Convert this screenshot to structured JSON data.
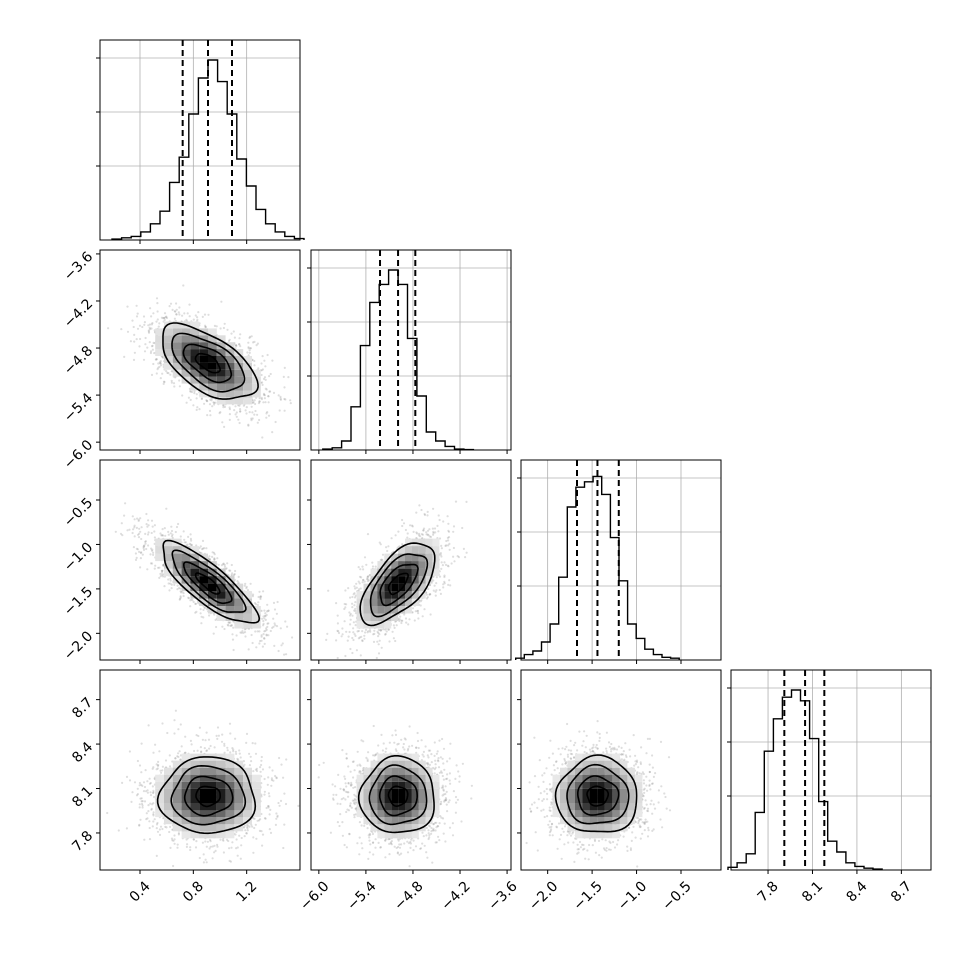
{
  "chart_data": {
    "type": "corner",
    "grid": true,
    "colors": {
      "line": "#000000",
      "grid": "#b0b0b0",
      "points": "#8a8a8a",
      "hist2d_low": "#ffffff",
      "hist2d_high": "#000000"
    },
    "params": [
      {
        "range": [
          0.1,
          1.6
        ],
        "ticks": [
          0.4,
          0.8,
          1.2
        ],
        "tick_labels": [
          "0.4",
          "0.8",
          "1.2"
        ],
        "center": 0.91,
        "sigma": 0.18,
        "quantiles": [
          0.72,
          0.91,
          1.09
        ],
        "hist": [
          0.005,
          0.012,
          0.02,
          0.045,
          0.09,
          0.16,
          0.32,
          0.46,
          0.7,
          0.9,
          1.0,
          0.88,
          0.7,
          0.45,
          0.3,
          0.17,
          0.09,
          0.045,
          0.02,
          0.008
        ]
      },
      {
        "range": [
          -6.1,
          -3.55
        ],
        "ticks": [
          -6.0,
          -5.4,
          -4.8,
          -4.2,
          -3.6
        ],
        "tick_labels": [
          "−6.0",
          "−5.4",
          "−4.8",
          "−4.2",
          "−3.6"
        ],
        "center": -4.99,
        "sigma": 0.24,
        "quantiles": [
          -5.22,
          -4.99,
          -4.77
        ],
        "hist": [
          0.005,
          0.012,
          0.05,
          0.24,
          0.58,
          0.82,
          0.92,
          1.0,
          0.92,
          0.62,
          0.3,
          0.1,
          0.05,
          0.02,
          0.005,
          0.002
        ]
      },
      {
        "range": [
          -2.3,
          -0.05
        ],
        "ticks": [
          -2.0,
          -1.5,
          -1.0,
          -0.5
        ],
        "tick_labels": [
          "−2.0",
          "−1.5",
          "−1.0",
          "−0.5"
        ],
        "center": -1.44,
        "sigma": 0.23,
        "quantiles": [
          -1.67,
          -1.44,
          -1.2
        ],
        "hist": [
          0.01,
          0.03,
          0.05,
          0.1,
          0.2,
          0.46,
          0.85,
          0.96,
          0.99,
          1.02,
          0.92,
          0.68,
          0.44,
          0.2,
          0.12,
          0.06,
          0.03,
          0.015,
          0.01
        ]
      },
      {
        "range": [
          7.55,
          8.9
        ],
        "ticks": [
          7.8,
          8.1,
          8.4,
          8.7
        ],
        "tick_labels": [
          "7.8",
          "8.1",
          "8.4",
          "8.7"
        ],
        "center": 8.05,
        "sigma": 0.13,
        "quantiles": [
          7.91,
          8.05,
          8.18
        ],
        "hist": [
          0.015,
          0.04,
          0.09,
          0.32,
          0.66,
          0.84,
          0.96,
          1.0,
          0.94,
          0.73,
          0.38,
          0.16,
          0.1,
          0.04,
          0.02,
          0.01,
          0.005
        ]
      }
    ],
    "correlations": {
      "1-0": -0.58,
      "2-0": -0.82,
      "2-1": 0.62,
      "3-0": 0.0,
      "3-1": 0.0,
      "3-2": 0.0
    },
    "contour_levels": [
      0.12,
      0.39,
      0.68,
      0.86
    ]
  }
}
